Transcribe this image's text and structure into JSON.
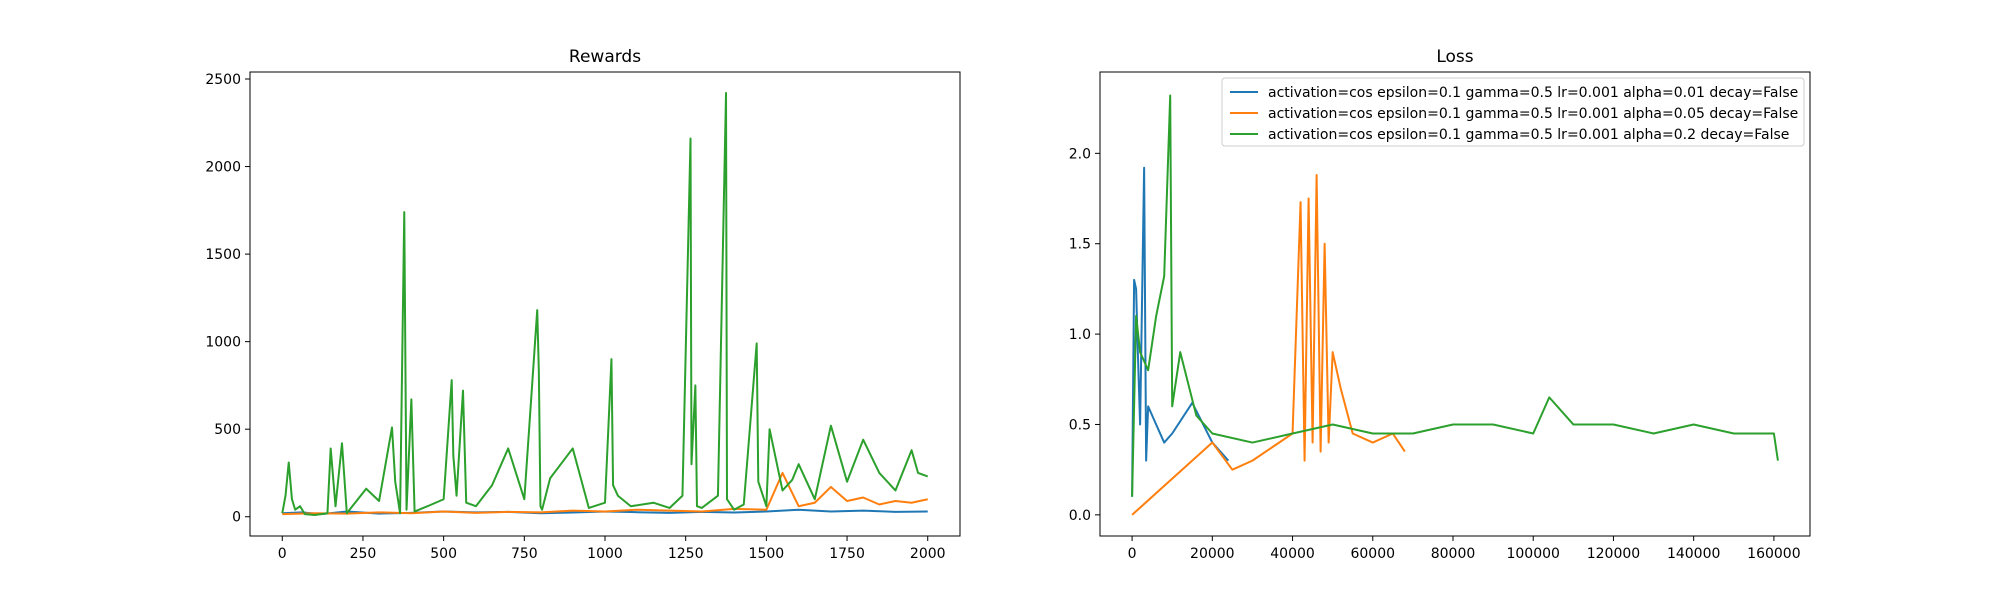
{
  "colors": {
    "blue": "#1f77b4",
    "orange": "#ff7f0e",
    "green": "#2ca02c"
  },
  "chart_data": [
    {
      "type": "line",
      "title": "Rewards",
      "xlim": [
        -100,
        2100
      ],
      "ylim": [
        -110,
        2540
      ],
      "xticks": [
        0,
        250,
        500,
        750,
        1000,
        1250,
        1500,
        1750,
        2000
      ],
      "yticks": [
        0,
        500,
        1000,
        1500,
        2000,
        2500
      ],
      "grid": false,
      "series": [
        {
          "color": "blue",
          "x": [
            0,
            60,
            120,
            200,
            300,
            400,
            500,
            600,
            700,
            800,
            900,
            1000,
            1100,
            1200,
            1300,
            1400,
            1500,
            1600,
            1700,
            1800,
            1900,
            2000
          ],
          "y": [
            20,
            25,
            15,
            30,
            18,
            22,
            30,
            25,
            28,
            20,
            24,
            30,
            26,
            22,
            28,
            24,
            30,
            40,
            30,
            35,
            28,
            30
          ]
        },
        {
          "color": "orange",
          "x": [
            0,
            100,
            200,
            300,
            400,
            500,
            600,
            700,
            800,
            900,
            1000,
            1100,
            1200,
            1300,
            1400,
            1500,
            1550,
            1600,
            1650,
            1700,
            1750,
            1800,
            1850,
            1900,
            1950,
            2000
          ],
          "y": [
            15,
            20,
            18,
            25,
            20,
            30,
            22,
            28,
            25,
            35,
            30,
            40,
            35,
            30,
            45,
            40,
            250,
            60,
            80,
            170,
            90,
            110,
            70,
            90,
            80,
            100
          ]
        },
        {
          "color": "green",
          "x": [
            0,
            10,
            20,
            30,
            40,
            55,
            70,
            100,
            140,
            150,
            165,
            185,
            200,
            260,
            300,
            340,
            350,
            365,
            378,
            385,
            400,
            410,
            450,
            500,
            525,
            530,
            540,
            560,
            570,
            600,
            650,
            700,
            750,
            790,
            795,
            800,
            805,
            830,
            900,
            950,
            1000,
            1020,
            1025,
            1040,
            1080,
            1150,
            1200,
            1240,
            1265,
            1268,
            1280,
            1285,
            1300,
            1350,
            1375,
            1378,
            1400,
            1430,
            1470,
            1475,
            1500,
            1510,
            1550,
            1580,
            1600,
            1650,
            1700,
            1750,
            1800,
            1850,
            1900,
            1950,
            1970,
            2000
          ],
          "y": [
            20,
            120,
            310,
            100,
            40,
            60,
            15,
            10,
            20,
            390,
            60,
            420,
            20,
            160,
            90,
            510,
            200,
            20,
            1740,
            40,
            670,
            30,
            60,
            100,
            780,
            350,
            120,
            720,
            80,
            60,
            180,
            390,
            100,
            1180,
            830,
            60,
            40,
            220,
            390,
            50,
            80,
            900,
            180,
            120,
            60,
            80,
            50,
            120,
            2160,
            300,
            750,
            60,
            50,
            120,
            2420,
            100,
            40,
            70,
            990,
            200,
            60,
            500,
            150,
            210,
            300,
            100,
            520,
            200,
            440,
            250,
            150,
            380,
            250,
            230
          ]
        }
      ]
    },
    {
      "type": "line",
      "title": "Loss",
      "xlim": [
        -8000,
        169000
      ],
      "ylim": [
        -0.117,
        2.45
      ],
      "xticks": [
        0,
        20000,
        40000,
        60000,
        80000,
        100000,
        120000,
        140000,
        160000
      ],
      "yticks": [
        0.0,
        0.5,
        1.0,
        1.5,
        2.0
      ],
      "grid": false,
      "legend": "top-right",
      "series": [
        {
          "name": "activation=cos epsilon=0.1 gamma=0.5 lr=0.001 alpha=0.01 decay=False",
          "color": "blue",
          "x": [
            0,
            500,
            1000,
            1500,
            2000,
            3000,
            3500,
            4000,
            6000,
            8000,
            10000,
            15000,
            20000,
            24000
          ],
          "y": [
            0.1,
            1.3,
            1.25,
            0.85,
            0.5,
            1.92,
            0.3,
            0.6,
            0.5,
            0.4,
            0.45,
            0.62,
            0.4,
            0.3
          ]
        },
        {
          "name": "activation=cos epsilon=0.1 gamma=0.5 lr=0.001 alpha=0.05 decay=False",
          "color": "orange",
          "x": [
            0,
            20000,
            25000,
            30000,
            40000,
            42000,
            43000,
            44000,
            45000,
            46000,
            47000,
            48000,
            49000,
            50000,
            52000,
            55000,
            60000,
            65000,
            68000
          ],
          "y": [
            0.0,
            0.4,
            0.25,
            0.3,
            0.45,
            1.73,
            0.3,
            1.75,
            0.4,
            1.88,
            0.35,
            1.5,
            0.4,
            0.9,
            0.7,
            0.45,
            0.4,
            0.45,
            0.35
          ]
        },
        {
          "name": "activation=cos epsilon=0.1 gamma=0.5 lr=0.001 alpha=0.2 decay=False",
          "color": "green",
          "x": [
            0,
            1000,
            2000,
            4000,
            6000,
            8000,
            9500,
            10000,
            12000,
            16000,
            20000,
            30000,
            40000,
            50000,
            60000,
            70000,
            80000,
            90000,
            100000,
            104000,
            110000,
            120000,
            130000,
            140000,
            150000,
            160000,
            161000
          ],
          "y": [
            0.1,
            1.1,
            0.9,
            0.8,
            1.1,
            1.32,
            2.32,
            0.6,
            0.9,
            0.55,
            0.45,
            0.4,
            0.45,
            0.5,
            0.45,
            0.45,
            0.5,
            0.5,
            0.45,
            0.65,
            0.5,
            0.5,
            0.45,
            0.5,
            0.45,
            0.45,
            0.3
          ]
        }
      ]
    }
  ]
}
